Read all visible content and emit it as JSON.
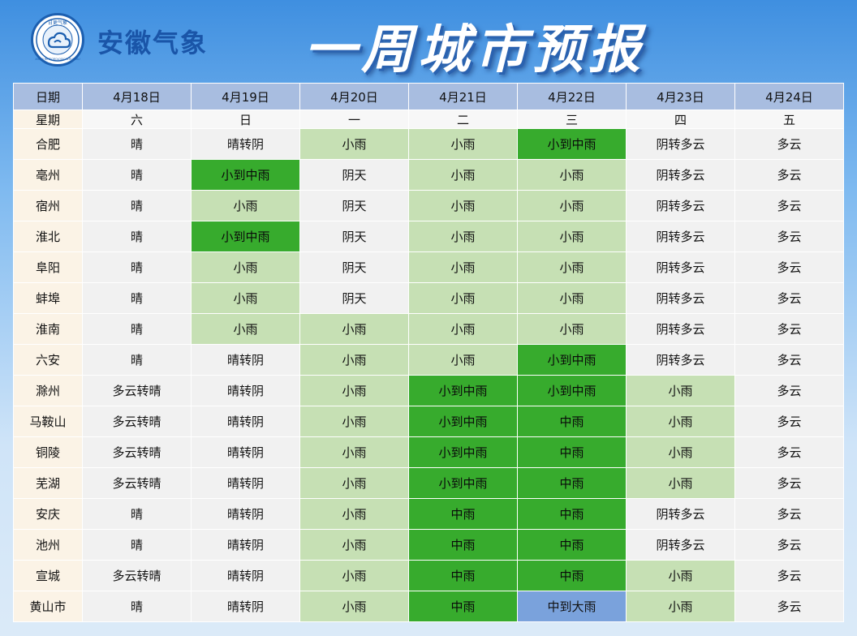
{
  "org_name": "安徽气象",
  "logo_top_text": "日更气象",
  "logo_ring_text": "ANHUI METEOROLOGICAL BUREAU",
  "title": "一周城市预报",
  "colors": {
    "light_green": "#c6e0b4",
    "dark_green": "#37ab2d",
    "blue": "#7aa2dc",
    "header": "#a8bde0"
  },
  "table": {
    "date_label": "日期",
    "week_label": "星期",
    "dates": [
      "4月18日",
      "4月19日",
      "4月20日",
      "4月21日",
      "4月22日",
      "4月23日",
      "4月24日"
    ],
    "weekdays": [
      "六",
      "日",
      "一",
      "二",
      "三",
      "四",
      "五"
    ],
    "rows": [
      {
        "city": "合肥",
        "cells": [
          [
            "晴",
            "n"
          ],
          [
            "晴转阴",
            "n"
          ],
          [
            "小雨",
            "l"
          ],
          [
            "小雨",
            "l"
          ],
          [
            "小到中雨",
            "d"
          ],
          [
            "阴转多云",
            "n"
          ],
          [
            "多云",
            "n"
          ]
        ]
      },
      {
        "city": "亳州",
        "cells": [
          [
            "晴",
            "n"
          ],
          [
            "小到中雨",
            "d"
          ],
          [
            "阴天",
            "n"
          ],
          [
            "小雨",
            "l"
          ],
          [
            "小雨",
            "l"
          ],
          [
            "阴转多云",
            "n"
          ],
          [
            "多云",
            "n"
          ]
        ]
      },
      {
        "city": "宿州",
        "cells": [
          [
            "晴",
            "n"
          ],
          [
            "小雨",
            "l"
          ],
          [
            "阴天",
            "n"
          ],
          [
            "小雨",
            "l"
          ],
          [
            "小雨",
            "l"
          ],
          [
            "阴转多云",
            "n"
          ],
          [
            "多云",
            "n"
          ]
        ]
      },
      {
        "city": "淮北",
        "cells": [
          [
            "晴",
            "n"
          ],
          [
            "小到中雨",
            "d"
          ],
          [
            "阴天",
            "n"
          ],
          [
            "小雨",
            "l"
          ],
          [
            "小雨",
            "l"
          ],
          [
            "阴转多云",
            "n"
          ],
          [
            "多云",
            "n"
          ]
        ]
      },
      {
        "city": "阜阳",
        "cells": [
          [
            "晴",
            "n"
          ],
          [
            "小雨",
            "l"
          ],
          [
            "阴天",
            "n"
          ],
          [
            "小雨",
            "l"
          ],
          [
            "小雨",
            "l"
          ],
          [
            "阴转多云",
            "n"
          ],
          [
            "多云",
            "n"
          ]
        ]
      },
      {
        "city": "蚌埠",
        "cells": [
          [
            "晴",
            "n"
          ],
          [
            "小雨",
            "l"
          ],
          [
            "阴天",
            "n"
          ],
          [
            "小雨",
            "l"
          ],
          [
            "小雨",
            "l"
          ],
          [
            "阴转多云",
            "n"
          ],
          [
            "多云",
            "n"
          ]
        ]
      },
      {
        "city": "淮南",
        "cells": [
          [
            "晴",
            "n"
          ],
          [
            "小雨",
            "l"
          ],
          [
            "小雨",
            "l"
          ],
          [
            "小雨",
            "l"
          ],
          [
            "小雨",
            "l"
          ],
          [
            "阴转多云",
            "n"
          ],
          [
            "多云",
            "n"
          ]
        ]
      },
      {
        "city": "六安",
        "cells": [
          [
            "晴",
            "n"
          ],
          [
            "晴转阴",
            "n"
          ],
          [
            "小雨",
            "l"
          ],
          [
            "小雨",
            "l"
          ],
          [
            "小到中雨",
            "d"
          ],
          [
            "阴转多云",
            "n"
          ],
          [
            "多云",
            "n"
          ]
        ]
      },
      {
        "city": "滁州",
        "cells": [
          [
            "多云转晴",
            "n"
          ],
          [
            "晴转阴",
            "n"
          ],
          [
            "小雨",
            "l"
          ],
          [
            "小到中雨",
            "d"
          ],
          [
            "小到中雨",
            "d"
          ],
          [
            "小雨",
            "l"
          ],
          [
            "多云",
            "n"
          ]
        ]
      },
      {
        "city": "马鞍山",
        "cells": [
          [
            "多云转晴",
            "n"
          ],
          [
            "晴转阴",
            "n"
          ],
          [
            "小雨",
            "l"
          ],
          [
            "小到中雨",
            "d"
          ],
          [
            "中雨",
            "d"
          ],
          [
            "小雨",
            "l"
          ],
          [
            "多云",
            "n"
          ]
        ]
      },
      {
        "city": "铜陵",
        "cells": [
          [
            "多云转晴",
            "n"
          ],
          [
            "晴转阴",
            "n"
          ],
          [
            "小雨",
            "l"
          ],
          [
            "小到中雨",
            "d"
          ],
          [
            "中雨",
            "d"
          ],
          [
            "小雨",
            "l"
          ],
          [
            "多云",
            "n"
          ]
        ]
      },
      {
        "city": "芜湖",
        "cells": [
          [
            "多云转晴",
            "n"
          ],
          [
            "晴转阴",
            "n"
          ],
          [
            "小雨",
            "l"
          ],
          [
            "小到中雨",
            "d"
          ],
          [
            "中雨",
            "d"
          ],
          [
            "小雨",
            "l"
          ],
          [
            "多云",
            "n"
          ]
        ]
      },
      {
        "city": "安庆",
        "cells": [
          [
            "晴",
            "n"
          ],
          [
            "晴转阴",
            "n"
          ],
          [
            "小雨",
            "l"
          ],
          [
            "中雨",
            "d"
          ],
          [
            "中雨",
            "d"
          ],
          [
            "阴转多云",
            "n"
          ],
          [
            "多云",
            "n"
          ]
        ]
      },
      {
        "city": "池州",
        "cells": [
          [
            "晴",
            "n"
          ],
          [
            "晴转阴",
            "n"
          ],
          [
            "小雨",
            "l"
          ],
          [
            "中雨",
            "d"
          ],
          [
            "中雨",
            "d"
          ],
          [
            "阴转多云",
            "n"
          ],
          [
            "多云",
            "n"
          ]
        ]
      },
      {
        "city": "宣城",
        "cells": [
          [
            "多云转晴",
            "n"
          ],
          [
            "晴转阴",
            "n"
          ],
          [
            "小雨",
            "l"
          ],
          [
            "中雨",
            "d"
          ],
          [
            "中雨",
            "d"
          ],
          [
            "小雨",
            "l"
          ],
          [
            "多云",
            "n"
          ]
        ]
      },
      {
        "city": "黄山市",
        "cells": [
          [
            "晴",
            "n"
          ],
          [
            "晴转阴",
            "n"
          ],
          [
            "小雨",
            "l"
          ],
          [
            "中雨",
            "d"
          ],
          [
            "中到大雨",
            "b"
          ],
          [
            "小雨",
            "l"
          ],
          [
            "多云",
            "n"
          ]
        ]
      }
    ]
  }
}
